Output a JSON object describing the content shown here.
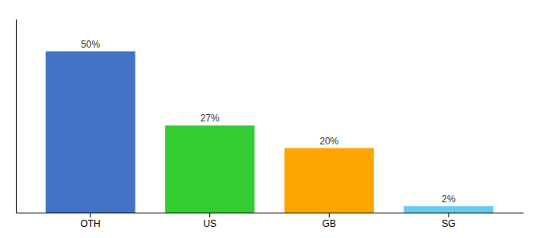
{
  "chart_data": {
    "type": "bar",
    "categories": [
      "OTH",
      "US",
      "GB",
      "SG"
    ],
    "values": [
      50,
      27,
      20,
      2
    ],
    "value_labels": [
      "50%",
      "27%",
      "20%",
      "2%"
    ],
    "colors": [
      "#4472C4",
      "#33CC33",
      "#FFA500",
      "#66CCEE"
    ],
    "ylim": [
      0,
      60
    ],
    "grid": false,
    "data_labels": true,
    "tick_labels": "x"
  }
}
